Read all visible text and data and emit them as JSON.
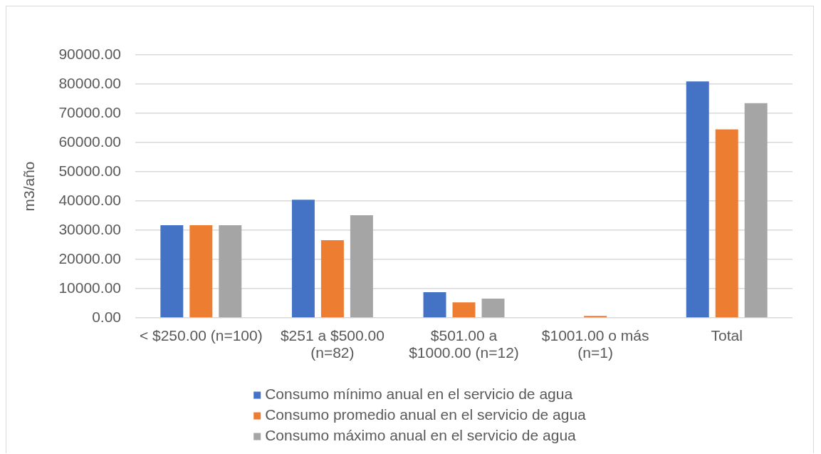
{
  "chart_data": {
    "type": "bar",
    "ylabel": "m3/año",
    "categories": [
      "< $250.00 (n=100)",
      "$251 a $500.00 (n=82)",
      "$501.00 a $1000.00 (n=12)",
      "$1001.00 o más (n=1)",
      "Total"
    ],
    "series": [
      {
        "name": "Consumo mínimo anual en el servicio de agua",
        "color": "#4472c4",
        "values": [
          31700,
          40400,
          8800,
          0,
          80900
        ]
      },
      {
        "name": "Consumo promedio anual en el servicio de agua",
        "color": "#ed7d31",
        "values": [
          31700,
          26600,
          5300,
          700,
          64500
        ]
      },
      {
        "name": "Consumo máximo anual en el servicio de agua",
        "color": "#a5a5a5",
        "values": [
          31700,
          35100,
          6600,
          0,
          73500
        ]
      }
    ],
    "ylim": [
      0,
      90000
    ],
    "yticks": [
      {
        "value": 0,
        "label": "0.00"
      },
      {
        "value": 10000,
        "label": "10000.00"
      },
      {
        "value": 20000,
        "label": "20000.00"
      },
      {
        "value": 30000,
        "label": "30000.00"
      },
      {
        "value": 40000,
        "label": "40000.00"
      },
      {
        "value": 50000,
        "label": "50000.00"
      },
      {
        "value": 60000,
        "label": "60000.00"
      },
      {
        "value": 70000,
        "label": "70000.00"
      },
      {
        "value": 80000,
        "label": "80000.00"
      },
      {
        "value": 90000,
        "label": "90000.00"
      }
    ],
    "grid": "y",
    "legend": "bottom"
  }
}
